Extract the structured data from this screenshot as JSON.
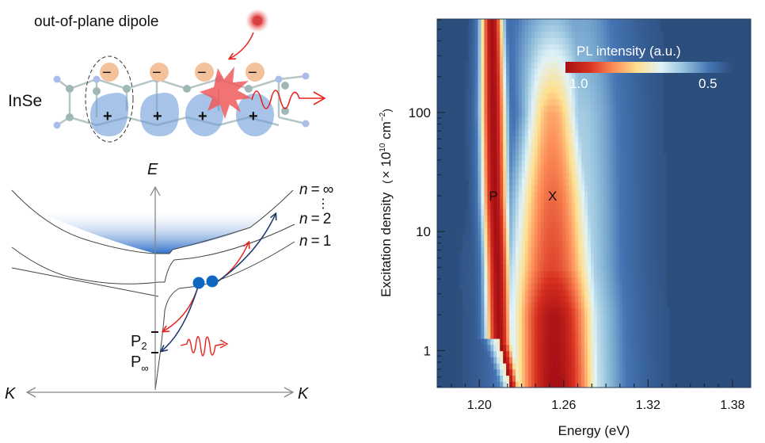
{
  "schematic": {
    "title": "out-of-plane dipole",
    "material_label": "InSe",
    "minus_sign": "−",
    "plus_sign": "+",
    "dipole_count": 4
  },
  "band_diagram": {
    "energy_axis_label": "E",
    "momentum_left_label": "K",
    "momentum_right_label": "K",
    "levels": [
      {
        "label": "n = ∞",
        "n": "∞"
      },
      {
        "label": "n = 2",
        "n": "2"
      },
      {
        "label": "n = 1",
        "n": "1"
      }
    ],
    "ellipsis": "⋮",
    "polariton_states": [
      {
        "label": "P",
        "subscript": "2"
      },
      {
        "label": "P",
        "subscript": "∞"
      }
    ],
    "colors": {
      "continuum": "#2f6fc9",
      "relaxation_red": "#e8231f",
      "relaxation_navy": "#1c3a6b",
      "particle": "#0f67c2"
    }
  },
  "chart_data": {
    "type": "heatmap",
    "title": "",
    "xlabel": "Energy (eV)",
    "ylabel": "Excitation density (× 10^10 cm^-2)",
    "ylabel_parts": {
      "main": "Excitation density",
      "paren_open": "(",
      "times": "× 10",
      "exp1": "10",
      "unit": " cm",
      "exp2": "−2",
      "paren_close": ")"
    },
    "xlim": [
      1.17,
      1.393
    ],
    "ylim": [
      0.49,
      610
    ],
    "yscale": "log",
    "xticks": [
      1.2,
      1.26,
      1.32,
      1.38
    ],
    "xtick_labels": [
      "1.20",
      "1.26",
      "1.32",
      "1.38"
    ],
    "yticks": [
      1,
      10,
      100
    ],
    "ytick_labels": [
      "1",
      "10",
      "100"
    ],
    "peak_labels": [
      {
        "text": "P",
        "energy": 1.21,
        "density": 20
      },
      {
        "text": "X",
        "energy": 1.252,
        "density": 20
      }
    ],
    "colorbar": {
      "title": "PL intensity (a.u.)",
      "max_label": "1.0",
      "min_label": "0.5",
      "max": 1.0,
      "min": 0.5,
      "placement": "top-right",
      "colors": [
        "#a50f15",
        "#d7301f",
        "#fc8d59",
        "#fee090",
        "#e0f3f8",
        "#91bfdb",
        "#4575b4",
        "#2c4e7d"
      ]
    },
    "background_color": "#2c4e7d",
    "peak_P": [
      {
        "density": 600,
        "energy": 1.209,
        "width": 0.007
      },
      {
        "density": 100,
        "energy": 1.21,
        "width": 0.008
      },
      {
        "density": 20,
        "energy": 1.211,
        "width": 0.008
      },
      {
        "density": 5,
        "energy": 1.213,
        "width": 0.008
      },
      {
        "density": 1.2,
        "energy": 1.214,
        "width": 0.008
      },
      {
        "density": 0.49,
        "energy": 1.222,
        "width": 0.006
      }
    ],
    "peak_X": [
      {
        "density": 600,
        "energy": 1.252,
        "width": 0.02,
        "intensity": 0.45
      },
      {
        "density": 100,
        "energy": 1.252,
        "width": 0.014,
        "intensity": 0.72
      },
      {
        "density": 20,
        "energy": 1.252,
        "width": 0.018,
        "intensity": 0.8
      },
      {
        "density": 5,
        "energy": 1.252,
        "width": 0.02,
        "intensity": 0.85
      },
      {
        "density": 2,
        "energy": 1.253,
        "width": 0.019,
        "intensity": 0.98
      },
      {
        "density": 0.49,
        "energy": 1.254,
        "width": 0.019,
        "intensity": 1.0
      }
    ]
  }
}
